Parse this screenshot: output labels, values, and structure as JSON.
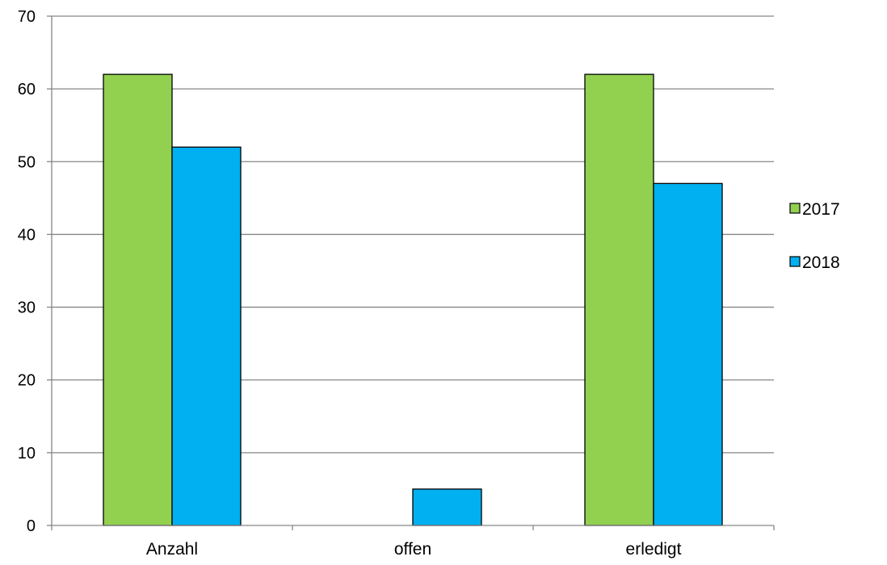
{
  "chart_data": {
    "type": "bar",
    "categories": [
      "Anzahl",
      "offen",
      "erledigt"
    ],
    "series": [
      {
        "name": "2017",
        "values": [
          62,
          0,
          62
        ],
        "color": "#92D050"
      },
      {
        "name": "2018",
        "values": [
          52,
          5,
          47
        ],
        "color": "#00B0F0"
      }
    ],
    "title": "",
    "xlabel": "",
    "ylabel": "",
    "ylim": [
      0,
      70
    ],
    "yticks": [
      0,
      10,
      20,
      30,
      40,
      50,
      60,
      70
    ],
    "grid": true,
    "legend_position": "right"
  }
}
